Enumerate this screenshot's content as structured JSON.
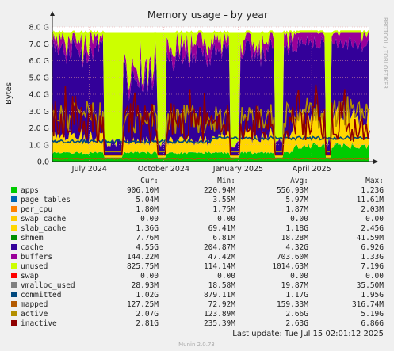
{
  "chart_data": {
    "type": "area",
    "title": "Memory usage - by year",
    "ylabel": "Bytes",
    "side_label": "RRDTOOL / TOBI OETIKER",
    "footer": "Munin 2.0.73",
    "last_update": "Last update: Tue Jul 15 02:01:12 2025",
    "yticks": [
      "0.0",
      "1.0 G",
      "2.0 G",
      "3.0 G",
      "4.0 G",
      "5.0 G",
      "6.0 G",
      "7.0 G",
      "8.0 G"
    ],
    "ylim": [
      0,
      8
    ],
    "xticks": [
      "July 2024",
      "October 2024",
      "January 2025",
      "April 2025"
    ],
    "xtick_pos": [
      0.117,
      0.351,
      0.586,
      0.818
    ],
    "grid": true,
    "columns": [
      "Cur:",
      "Min:",
      "Avg:",
      "Max:"
    ],
    "legend": [
      {
        "name": "apps",
        "color": "#00cc00",
        "cur": "906.10M",
        "min": "220.94M",
        "avg": "556.93M",
        "max": "1.23G"
      },
      {
        "name": "page_tables",
        "color": "#0066b3",
        "cur": "5.04M",
        "min": "3.55M",
        "avg": "5.97M",
        "max": "11.61M"
      },
      {
        "name": "per_cpu",
        "color": "#ff8000",
        "cur": "1.80M",
        "min": "1.75M",
        "avg": "1.87M",
        "max": "2.03M"
      },
      {
        "name": "swap_cache",
        "color": "#ffcc00",
        "cur": "0.00",
        "min": "0.00",
        "avg": "0.00",
        "max": "0.00"
      },
      {
        "name": "slab_cache",
        "color": "#ffd700",
        "cur": "1.36G",
        "min": "69.41M",
        "avg": "1.18G",
        "max": "2.45G"
      },
      {
        "name": "shmem",
        "color": "#008f00",
        "cur": "7.76M",
        "min": "6.81M",
        "avg": "18.28M",
        "max": "41.59M"
      },
      {
        "name": "cache",
        "color": "#330099",
        "cur": "4.55G",
        "min": "204.87M",
        "avg": "4.32G",
        "max": "6.92G"
      },
      {
        "name": "buffers",
        "color": "#990099",
        "cur": "144.22M",
        "min": "47.42M",
        "avg": "703.60M",
        "max": "1.33G"
      },
      {
        "name": "unused",
        "color": "#ccff00",
        "cur": "825.75M",
        "min": "114.14M",
        "avg": "1014.63M",
        "max": "7.19G"
      },
      {
        "name": "swap",
        "color": "#ff0000",
        "cur": "0.00",
        "min": "0.00",
        "avg": "0.00",
        "max": "0.00"
      },
      {
        "name": "vmalloc_used",
        "color": "#808080",
        "cur": "28.93M",
        "min": "18.58M",
        "avg": "19.87M",
        "max": "35.50M"
      },
      {
        "name": "committed",
        "color": "#00487d",
        "cur": "1.02G",
        "min": "879.11M",
        "avg": "1.17G",
        "max": "1.95G"
      },
      {
        "name": "mapped",
        "color": "#b35a00",
        "cur": "127.25M",
        "min": "72.92M",
        "avg": "159.33M",
        "max": "316.74M"
      },
      {
        "name": "active",
        "color": "#b38f00",
        "cur": "2.07G",
        "min": "123.89M",
        "avg": "2.66G",
        "max": "5.19G"
      },
      {
        "name": "inactive",
        "color": "#8f0000",
        "cur": "2.81G",
        "min": "235.39M",
        "avg": "2.63G",
        "max": "6.86G"
      }
    ]
  }
}
